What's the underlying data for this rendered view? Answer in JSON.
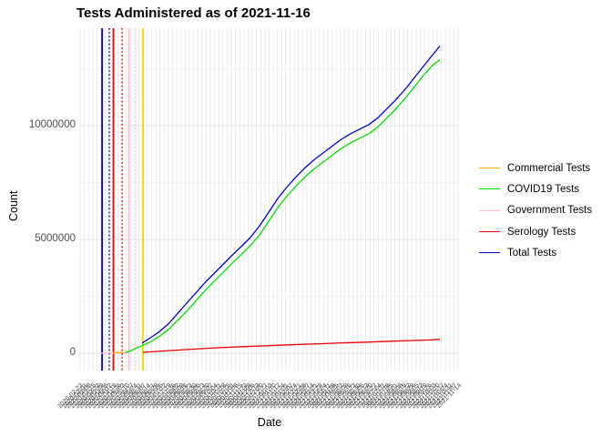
{
  "chart_data": {
    "type": "line",
    "title": "Tests Administered as of 2021-11-16",
    "xlabel": "Date",
    "ylabel": "Count",
    "legend_position": "right",
    "grid": true,
    "colors": {
      "background": "#ffffff",
      "grid_x": "#e3e3e3",
      "grid_major": "#e4e4e4",
      "grid_minor": "#f1f1f1",
      "axis_text": "#4d4d4d",
      "title_text": "#000000"
    },
    "y_axis": {
      "tick_values": [
        0,
        5000000,
        10000000
      ],
      "tick_labels": [
        "0",
        "5000000",
        "10000000"
      ],
      "minor": [
        2500000,
        7500000,
        12500000
      ],
      "range": [
        -760000,
        14280000
      ]
    },
    "x_axis": {
      "tick_labels": [
        "2020-02-23",
        "2020-03-01",
        "2020-03-08",
        "2020-03-15",
        "2020-03-22",
        "2020-03-29",
        "2020-04-05",
        "2020-04-12",
        "2020-04-19",
        "2020-04-26",
        "2020-05-03",
        "2020-05-10",
        "2020-05-17",
        "2020-05-24",
        "2020-05-31",
        "2020-06-07",
        "2020-06-14",
        "2020-06-21",
        "2020-06-28",
        "2020-07-05",
        "2020-07-12",
        "2020-07-19",
        "2020-07-26",
        "2020-08-02",
        "2020-08-09",
        "2020-08-16",
        "2020-08-23",
        "2020-08-30",
        "2020-09-06",
        "2020-09-13",
        "2020-09-20",
        "2020-09-27",
        "2020-10-04",
        "2020-10-11",
        "2020-10-18",
        "2020-10-25",
        "2020-11-01",
        "2020-11-08",
        "2020-11-15",
        "2020-11-22",
        "2020-11-29",
        "2020-12-06",
        "2020-12-13",
        "2020-12-20",
        "2020-12-27",
        "2021-01-03",
        "2021-01-10",
        "2021-01-17",
        "2021-01-24",
        "2021-01-31",
        "2021-02-07",
        "2021-02-14",
        "2021-02-21",
        "2021-02-28",
        "2021-03-07",
        "2021-03-14",
        "2021-03-21",
        "2021-03-28",
        "2021-04-04",
        "2021-04-11",
        "2021-04-18",
        "2021-04-25",
        "2021-05-02",
        "2021-05-09",
        "2021-05-16",
        "2021-05-23",
        "2021-05-30",
        "2021-06-06",
        "2021-06-13",
        "2021-06-20",
        "2021-06-27",
        "2021-07-04",
        "2021-07-11",
        "2021-07-18",
        "2021-07-25",
        "2021-08-01",
        "2021-08-08",
        "2021-08-15",
        "2021-08-22",
        "2021-08-29",
        "2021-09-05",
        "2021-09-12",
        "2021-09-19",
        "2021-09-26",
        "2021-10-03",
        "2021-10-10",
        "2021-10-17",
        "2021-10-24",
        "2021-10-31",
        "2021-11-07",
        "2021-11-14"
      ]
    },
    "vlines": [
      {
        "color": "#0000CC",
        "style": "solid",
        "x_frac": 0.058
      },
      {
        "color": "#0000CC",
        "style": "dotted",
        "x_frac": 0.077
      },
      {
        "color": "#EE0000",
        "style": "solid",
        "x_frac": 0.088
      },
      {
        "color": "#EE0000",
        "style": "dotted",
        "x_frac": 0.111
      },
      {
        "color": "#FFC0CB",
        "style": "solid",
        "x_frac": 0.129
      },
      {
        "color": "#FFC0CB",
        "style": "dotted",
        "x_frac": 0.147
      },
      {
        "color": "#FFD000",
        "style": "solid",
        "x_frac": 0.166
      }
    ],
    "series": [
      {
        "name": "Commercial Tests",
        "color": "#FFA500",
        "points": [
          [
            0.075,
            20000
          ],
          [
            0.09,
            25000
          ],
          [
            0.116,
            35000
          ]
        ]
      },
      {
        "name": "COVID19 Tests",
        "color": "#00DD00",
        "points": [
          [
            0.118,
            20000
          ],
          [
            0.133,
            100000
          ],
          [
            0.149,
            230000
          ],
          [
            0.166,
            350000
          ],
          [
            0.186,
            500000
          ],
          [
            0.21,
            750000
          ],
          [
            0.234,
            1050000
          ],
          [
            0.258,
            1450000
          ],
          [
            0.282,
            1850000
          ],
          [
            0.306,
            2300000
          ],
          [
            0.33,
            2750000
          ],
          [
            0.354,
            3150000
          ],
          [
            0.378,
            3550000
          ],
          [
            0.402,
            3950000
          ],
          [
            0.427,
            4350000
          ],
          [
            0.451,
            4750000
          ],
          [
            0.475,
            5200000
          ],
          [
            0.499,
            5800000
          ],
          [
            0.523,
            6400000
          ],
          [
            0.547,
            6900000
          ],
          [
            0.571,
            7350000
          ],
          [
            0.595,
            7750000
          ],
          [
            0.619,
            8100000
          ],
          [
            0.643,
            8400000
          ],
          [
            0.667,
            8700000
          ],
          [
            0.691,
            9000000
          ],
          [
            0.716,
            9250000
          ],
          [
            0.74,
            9450000
          ],
          [
            0.764,
            9650000
          ],
          [
            0.788,
            9950000
          ],
          [
            0.812,
            10350000
          ],
          [
            0.836,
            10750000
          ],
          [
            0.86,
            11200000
          ],
          [
            0.884,
            11700000
          ],
          [
            0.908,
            12200000
          ],
          [
            0.932,
            12650000
          ],
          [
            0.952,
            12900000
          ]
        ]
      },
      {
        "name": "Government Tests",
        "color": "#FFC0CB",
        "points": [
          [
            0.053,
            4000
          ],
          [
            0.07,
            4000
          ],
          [
            0.089,
            4000
          ]
        ]
      },
      {
        "name": "Serology Tests",
        "color": "#EE0000",
        "points": [
          [
            0.166,
            40000
          ],
          [
            0.22,
            100000
          ],
          [
            0.28,
            160000
          ],
          [
            0.34,
            220000
          ],
          [
            0.4,
            270000
          ],
          [
            0.46,
            310000
          ],
          [
            0.52,
            350000
          ],
          [
            0.58,
            390000
          ],
          [
            0.64,
            420000
          ],
          [
            0.7,
            460000
          ],
          [
            0.76,
            490000
          ],
          [
            0.82,
            530000
          ],
          [
            0.88,
            560000
          ],
          [
            0.92,
            580000
          ],
          [
            0.952,
            610000
          ]
        ]
      },
      {
        "name": "Total Tests",
        "color": "#0000CC",
        "points": [
          [
            0.164,
            450000
          ],
          [
            0.186,
            680000
          ],
          [
            0.21,
            950000
          ],
          [
            0.234,
            1300000
          ],
          [
            0.258,
            1750000
          ],
          [
            0.282,
            2200000
          ],
          [
            0.306,
            2650000
          ],
          [
            0.33,
            3100000
          ],
          [
            0.354,
            3500000
          ],
          [
            0.378,
            3900000
          ],
          [
            0.402,
            4300000
          ],
          [
            0.427,
            4700000
          ],
          [
            0.451,
            5100000
          ],
          [
            0.475,
            5600000
          ],
          [
            0.499,
            6200000
          ],
          [
            0.523,
            6800000
          ],
          [
            0.547,
            7300000
          ],
          [
            0.571,
            7750000
          ],
          [
            0.595,
            8150000
          ],
          [
            0.619,
            8500000
          ],
          [
            0.643,
            8800000
          ],
          [
            0.667,
            9100000
          ],
          [
            0.691,
            9400000
          ],
          [
            0.716,
            9650000
          ],
          [
            0.74,
            9850000
          ],
          [
            0.764,
            10050000
          ],
          [
            0.788,
            10350000
          ],
          [
            0.812,
            10750000
          ],
          [
            0.836,
            11150000
          ],
          [
            0.86,
            11600000
          ],
          [
            0.884,
            12100000
          ],
          [
            0.908,
            12600000
          ],
          [
            0.932,
            13100000
          ],
          [
            0.952,
            13500000
          ]
        ]
      }
    ]
  }
}
